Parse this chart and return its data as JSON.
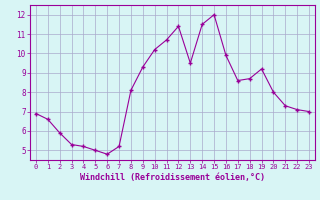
{
  "x": [
    0,
    1,
    2,
    3,
    4,
    5,
    6,
    7,
    8,
    9,
    10,
    11,
    12,
    13,
    14,
    15,
    16,
    17,
    18,
    19,
    20,
    21,
    22,
    23
  ],
  "y": [
    6.9,
    6.6,
    5.9,
    5.3,
    5.2,
    5.0,
    4.8,
    5.2,
    8.1,
    9.3,
    10.2,
    10.7,
    11.4,
    9.5,
    11.5,
    12.0,
    9.9,
    8.6,
    8.7,
    9.2,
    8.0,
    7.3,
    7.1,
    7.0
  ],
  "line_color": "#990099",
  "marker": "+",
  "marker_size": 3,
  "bg_color": "#d8f5f5",
  "grid_color": "#aaaacc",
  "xlabel": "Windchill (Refroidissement éolien,°C)",
  "xlabel_color": "#990099",
  "tick_color": "#990099",
  "yticks": [
    5,
    6,
    7,
    8,
    9,
    10,
    11,
    12
  ],
  "xticks": [
    0,
    1,
    2,
    3,
    4,
    5,
    6,
    7,
    8,
    9,
    10,
    11,
    12,
    13,
    14,
    15,
    16,
    17,
    18,
    19,
    20,
    21,
    22,
    23
  ],
  "ylim": [
    4.5,
    12.5
  ],
  "xlim": [
    -0.5,
    23.5
  ]
}
